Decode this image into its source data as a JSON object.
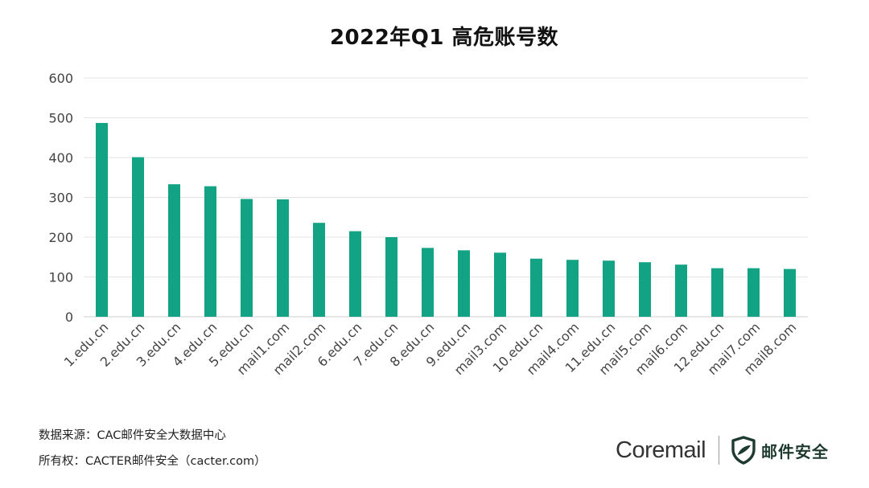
{
  "chart_data": {
    "type": "bar",
    "title": "2022年Q1 高危账号数",
    "categories": [
      "1.edu.cn",
      "2.edu.cn",
      "3.edu.cn",
      "4.edu.cn",
      "5.edu.cn",
      "mail1.com",
      "mail2.com",
      "6.edu.cn",
      "7.edu.cn",
      "8.edu.cn",
      "9.edu.cn",
      "mail3.com",
      "10.edu.cn",
      "mail4.com",
      "11.edu.cn",
      "mail5.com",
      "mail6.com",
      "12.edu.cn",
      "mail7.com",
      "mail8.com"
    ],
    "values": [
      487,
      401,
      333,
      328,
      296,
      295,
      236,
      215,
      200,
      173,
      167,
      161,
      146,
      143,
      141,
      137,
      131,
      122,
      122,
      120
    ],
    "ylim": [
      0,
      600
    ],
    "yticks": [
      0,
      100,
      200,
      300,
      400,
      500,
      600
    ],
    "grid": true,
    "bar_color": "#12a384"
  },
  "footer": {
    "source": "数据来源：CAC邮件安全大数据中心",
    "copyright": "所有权：CACTER邮件安全（cacter.com）"
  },
  "brand": {
    "name": "Coremail",
    "mark_text": "邮件安全",
    "icon": "shield-icon",
    "color": "#1f3a2f"
  }
}
